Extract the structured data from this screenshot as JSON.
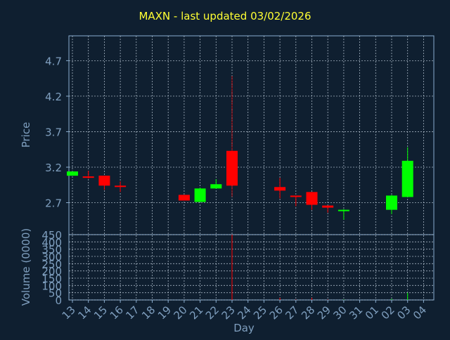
{
  "chart_data": {
    "type": "candlestick",
    "title": "MAXN - last updated 03/02/2026",
    "xlabel": "Day",
    "price_panel": {
      "ylabel": "Price",
      "ylim": [
        2.25,
        5.05
      ],
      "ticks": [
        2.7,
        3.2,
        3.7,
        4.2,
        4.7
      ]
    },
    "volume_panel": {
      "ylabel": "Volume (0000)",
      "ylim": [
        0,
        450
      ],
      "ticks": [
        0,
        50,
        100,
        150,
        200,
        250,
        300,
        350,
        400,
        450
      ]
    },
    "x_ticks": [
      "13",
      "14",
      "15",
      "16",
      "17",
      "18",
      "19",
      "20",
      "21",
      "22",
      "23",
      "24",
      "25",
      "26",
      "27",
      "28",
      "29",
      "30",
      "31",
      "01",
      "02",
      "03",
      "04"
    ],
    "candles": [
      {
        "day": "13",
        "open": 3.08,
        "high": 3.14,
        "low": 3.08,
        "close": 3.14,
        "volume": 0
      },
      {
        "day": "14",
        "open": 3.07,
        "high": 3.15,
        "low": 3.04,
        "close": 3.05,
        "volume": 0
      },
      {
        "day": "15",
        "open": 3.08,
        "high": 3.08,
        "low": 2.88,
        "close": 2.94,
        "volume": 0
      },
      {
        "day": "16",
        "open": 2.94,
        "high": 3.0,
        "low": 2.85,
        "close": 2.93,
        "volume": 0
      },
      {
        "day": "20",
        "open": 2.81,
        "high": 2.81,
        "low": 2.73,
        "close": 2.73,
        "volume": 0
      },
      {
        "day": "21",
        "open": 2.71,
        "high": 2.91,
        "low": 2.71,
        "close": 2.9,
        "volume": 0
      },
      {
        "day": "22",
        "open": 2.9,
        "high": 3.03,
        "low": 2.9,
        "close": 2.96,
        "volume": 0
      },
      {
        "day": "23",
        "open": 3.43,
        "high": 4.48,
        "low": 2.78,
        "close": 2.94,
        "volume": 450
      },
      {
        "day": "26",
        "open": 2.92,
        "high": 3.05,
        "low": 2.76,
        "close": 2.87,
        "volume": 15
      },
      {
        "day": "27",
        "open": 2.8,
        "high": 2.8,
        "low": 2.65,
        "close": 2.78,
        "volume": 3
      },
      {
        "day": "28",
        "open": 2.85,
        "high": 2.85,
        "low": 2.6,
        "close": 2.67,
        "volume": 15
      },
      {
        "day": "29",
        "open": 2.66,
        "high": 2.66,
        "low": 2.56,
        "close": 2.63,
        "volume": 3
      },
      {
        "day": "30",
        "open": 2.59,
        "high": 2.61,
        "low": 2.46,
        "close": 2.6,
        "volume": 3
      },
      {
        "day": "02",
        "open": 2.6,
        "high": 2.81,
        "low": 2.54,
        "close": 2.8,
        "volume": 8
      },
      {
        "day": "03",
        "open": 2.78,
        "high": 3.48,
        "low": 2.78,
        "close": 3.29,
        "volume": 50
      }
    ]
  },
  "colors": {
    "background": "#0f1f30",
    "axis": "#8aaed0",
    "grid": "#c8d6e4",
    "up": "#00ff00",
    "down": "#ff0000",
    "title": "#ffff33",
    "label": "#7f9fbf"
  }
}
